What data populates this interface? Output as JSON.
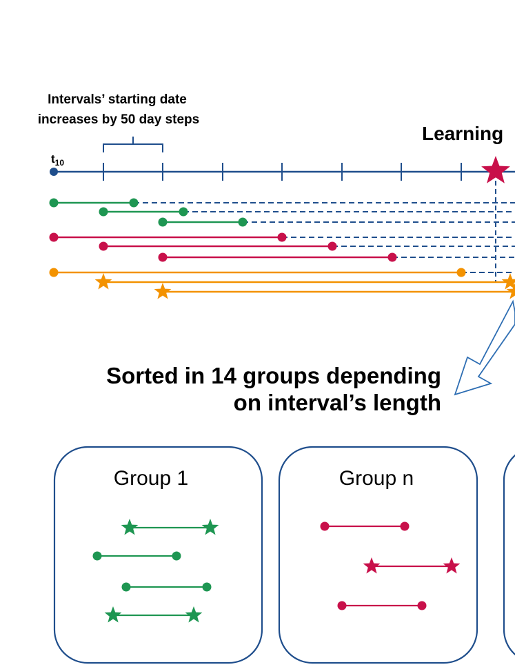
{
  "annotation": {
    "line1": "Intervals’ starting date",
    "line2": "increases by 50 day steps"
  },
  "timeline": {
    "start_label_main": "t",
    "start_label_sub": "10",
    "right_title": "Learning"
  },
  "sorted_text": {
    "line1": "Sorted in 14 groups depending",
    "line2": "on interval’s length"
  },
  "groups": [
    {
      "label": "Group 1"
    },
    {
      "label": "Group n"
    }
  ],
  "colors": {
    "axis": "#1f4e8c",
    "green": "#1e9652",
    "red": "#c8104a",
    "orange": "#f39200",
    "star_top": "#c8104a"
  }
}
